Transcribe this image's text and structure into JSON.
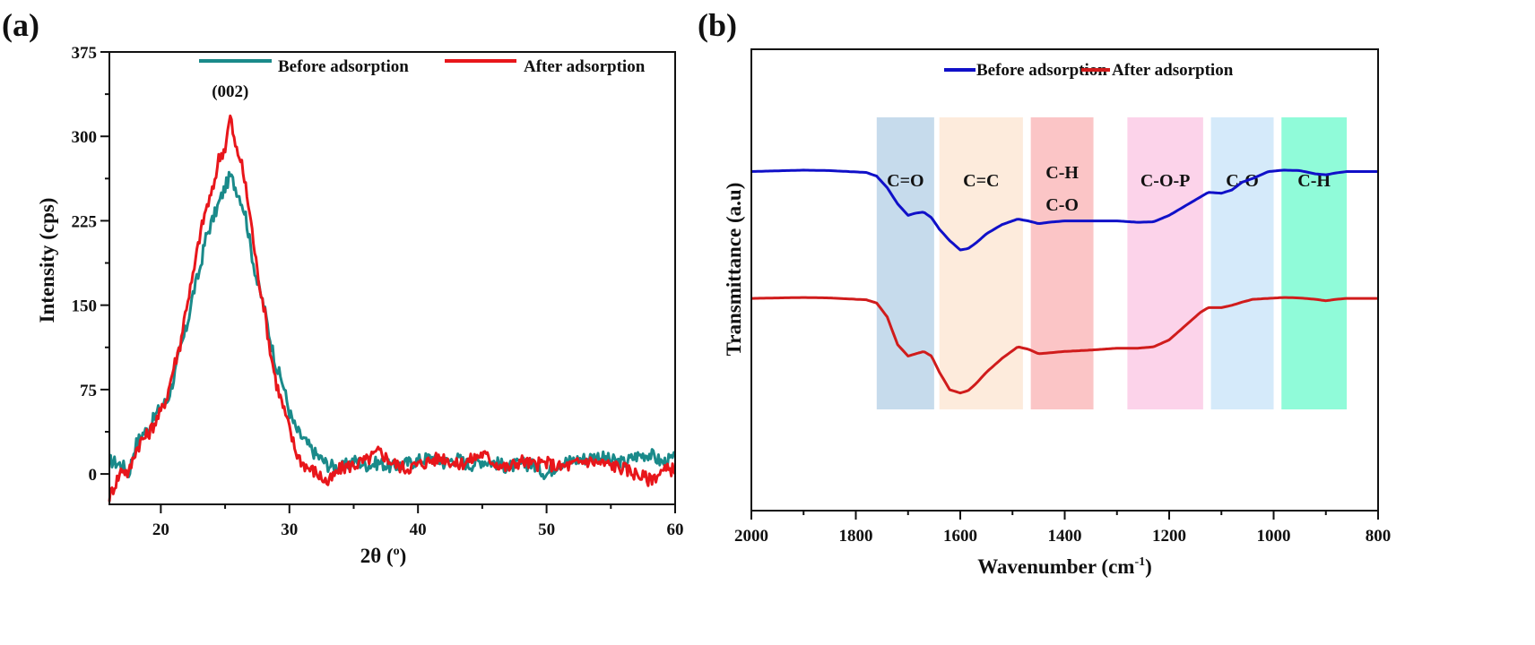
{
  "chart_data": [
    {
      "panel": "(a)",
      "type": "line",
      "title": "",
      "xlabel": "2θ (o)",
      "xlabel_main": "2θ (",
      "xlabel_sup": "o",
      "xlabel_end": ")",
      "ylabel": "Intensity (cps)",
      "xlim": [
        16,
        60
      ],
      "ylim": [
        -27,
        375
      ],
      "xticks": [
        20,
        30,
        40,
        50,
        60
      ],
      "xtick_labels": [
        "20",
        "30",
        "40",
        "50",
        "60"
      ],
      "yticks": [
        0,
        75,
        150,
        225,
        300,
        375
      ],
      "ytick_labels": [
        "0",
        "75",
        "150",
        "225",
        "300",
        "375"
      ],
      "grid": false,
      "legend_position": "top-right",
      "annotations": [
        {
          "text": "(002)",
          "x": 25.4,
          "y": 335
        }
      ],
      "series": [
        {
          "name": "Before adsorption",
          "color": "#1a8a8a",
          "peak_x": 25.4,
          "peak_y": 265,
          "baseline": 8,
          "x": [
            16,
            17,
            17.5,
            18,
            18.5,
            19,
            19.5,
            20,
            20.5,
            21,
            21.5,
            22,
            22.5,
            23,
            23.5,
            24,
            24.5,
            25,
            25.4,
            25.8,
            26.2,
            26.6,
            27,
            27.5,
            28,
            28.5,
            29,
            29.5,
            30,
            30.5,
            31,
            31.5,
            32,
            33,
            34,
            35,
            36,
            37,
            38,
            39,
            40,
            41,
            42,
            43,
            44,
            45,
            46,
            47,
            48,
            49,
            50,
            51,
            52,
            53,
            54,
            55,
            56,
            57,
            58,
            59,
            60
          ],
          "y": [
            12,
            8,
            0,
            25,
            35,
            40,
            50,
            60,
            65,
            85,
            110,
            130,
            160,
            180,
            210,
            225,
            240,
            255,
            265,
            255,
            245,
            230,
            200,
            170,
            150,
            120,
            95,
            80,
            55,
            40,
            32,
            25,
            18,
            8,
            5,
            12,
            8,
            10,
            6,
            9,
            12,
            15,
            10,
            14,
            8,
            12,
            10,
            6,
            9,
            8,
            0,
            10,
            12,
            14,
            16,
            12,
            10,
            16,
            18,
            10,
            14
          ]
        },
        {
          "name": "After adsorption",
          "color": "#e8161b",
          "peak_x": 25.4,
          "peak_y": 318,
          "baseline": 5,
          "x": [
            16,
            17,
            17.5,
            18,
            18.5,
            19,
            19.5,
            20,
            20.5,
            21,
            21.5,
            22,
            22.5,
            23,
            23.5,
            24,
            24.5,
            25,
            25.4,
            25.8,
            26.2,
            26.6,
            27,
            27.5,
            28,
            28.5,
            29,
            29.5,
            30,
            30.5,
            31,
            31.5,
            32,
            33,
            34,
            35,
            36,
            37,
            38,
            39,
            40,
            41,
            42,
            43,
            44,
            45,
            46,
            47,
            48,
            49,
            50,
            51,
            52,
            53,
            54,
            55,
            56,
            57,
            58,
            59,
            60
          ],
          "y": [
            -20,
            5,
            0,
            20,
            30,
            35,
            45,
            55,
            70,
            95,
            115,
            150,
            175,
            210,
            235,
            250,
            280,
            290,
            318,
            290,
            280,
            255,
            225,
            180,
            150,
            110,
            80,
            60,
            40,
            20,
            10,
            5,
            2,
            -8,
            5,
            8,
            12,
            20,
            10,
            5,
            8,
            12,
            15,
            8,
            12,
            18,
            10,
            5,
            12,
            8,
            10,
            6,
            8,
            12,
            10,
            8,
            5,
            0,
            -5,
            2,
            5
          ]
        }
      ]
    },
    {
      "panel": "(b)",
      "type": "line",
      "title": "",
      "xlabel": "Wavenumber (cm-1)",
      "xlabel_main": "Wavenumber (cm",
      "xlabel_sup": "-1",
      "xlabel_end": ")",
      "ylabel": "Transmittance (a.u)",
      "xlim": [
        2000,
        800
      ],
      "ylim": [
        0,
        1
      ],
      "xticks": [
        2000,
        1800,
        1600,
        1400,
        1200,
        1000,
        800
      ],
      "xtick_labels": [
        "2000",
        "1800",
        "1600",
        "1400",
        "1200",
        "1000",
        "800"
      ],
      "yticks": [],
      "grid": false,
      "legend_position": "top-right",
      "bands": [
        {
          "label_lines": [
            "C=O"
          ],
          "x_from": 1760,
          "x_to": 1650,
          "color": "#c6dbec"
        },
        {
          "label_lines": [
            "C=C"
          ],
          "x_from": 1640,
          "x_to": 1480,
          "color": "#fdebdc"
        },
        {
          "label_lines": [
            "C-H",
            "C-O"
          ],
          "x_from": 1465,
          "x_to": 1345,
          "color": "#fbc5c6"
        },
        {
          "label_lines": [
            "C-O-P"
          ],
          "x_from": 1280,
          "x_to": 1135,
          "color": "#fcd3ea"
        },
        {
          "label_lines": [
            "C-O"
          ],
          "x_from": 1120,
          "x_to": 1000,
          "color": "#d5eafa"
        },
        {
          "label_lines": [
            "C-H"
          ],
          "x_from": 985,
          "x_to": 860,
          "color": "#90fbd9"
        }
      ],
      "series": [
        {
          "name": "Before adsorption",
          "color": "#1010c8",
          "x": [
            2000,
            1900,
            1850,
            1780,
            1760,
            1740,
            1720,
            1700,
            1685,
            1670,
            1655,
            1640,
            1620,
            1600,
            1585,
            1570,
            1550,
            1520,
            1490,
            1470,
            1450,
            1430,
            1400,
            1350,
            1300,
            1260,
            1230,
            1200,
            1170,
            1140,
            1125,
            1100,
            1080,
            1060,
            1040,
            1010,
            980,
            950,
            920,
            900,
            880,
            860,
            840,
            800
          ],
          "y": [
            0.735,
            0.738,
            0.737,
            0.733,
            0.725,
            0.7,
            0.665,
            0.64,
            0.645,
            0.647,
            0.635,
            0.61,
            0.585,
            0.565,
            0.568,
            0.58,
            0.6,
            0.62,
            0.632,
            0.628,
            0.622,
            0.625,
            0.628,
            0.628,
            0.628,
            0.625,
            0.626,
            0.64,
            0.66,
            0.68,
            0.69,
            0.688,
            0.695,
            0.712,
            0.72,
            0.735,
            0.738,
            0.737,
            0.73,
            0.728,
            0.732,
            0.735,
            0.735,
            0.735
          ]
        },
        {
          "name": "After adsorption",
          "color": "#d01c1c",
          "x": [
            2000,
            1900,
            1850,
            1780,
            1760,
            1740,
            1720,
            1700,
            1685,
            1670,
            1655,
            1640,
            1620,
            1600,
            1585,
            1570,
            1550,
            1520,
            1490,
            1470,
            1450,
            1430,
            1400,
            1350,
            1300,
            1260,
            1230,
            1200,
            1170,
            1140,
            1125,
            1100,
            1080,
            1060,
            1040,
            1010,
            980,
            950,
            920,
            900,
            880,
            860,
            840,
            800
          ],
          "y": [
            0.46,
            0.462,
            0.461,
            0.457,
            0.45,
            0.42,
            0.36,
            0.335,
            0.34,
            0.345,
            0.335,
            0.3,
            0.262,
            0.255,
            0.26,
            0.275,
            0.3,
            0.33,
            0.355,
            0.35,
            0.34,
            0.342,
            0.345,
            0.348,
            0.352,
            0.352,
            0.355,
            0.37,
            0.4,
            0.43,
            0.44,
            0.44,
            0.445,
            0.452,
            0.458,
            0.46,
            0.462,
            0.461,
            0.458,
            0.455,
            0.458,
            0.46,
            0.46,
            0.46
          ]
        }
      ]
    }
  ]
}
